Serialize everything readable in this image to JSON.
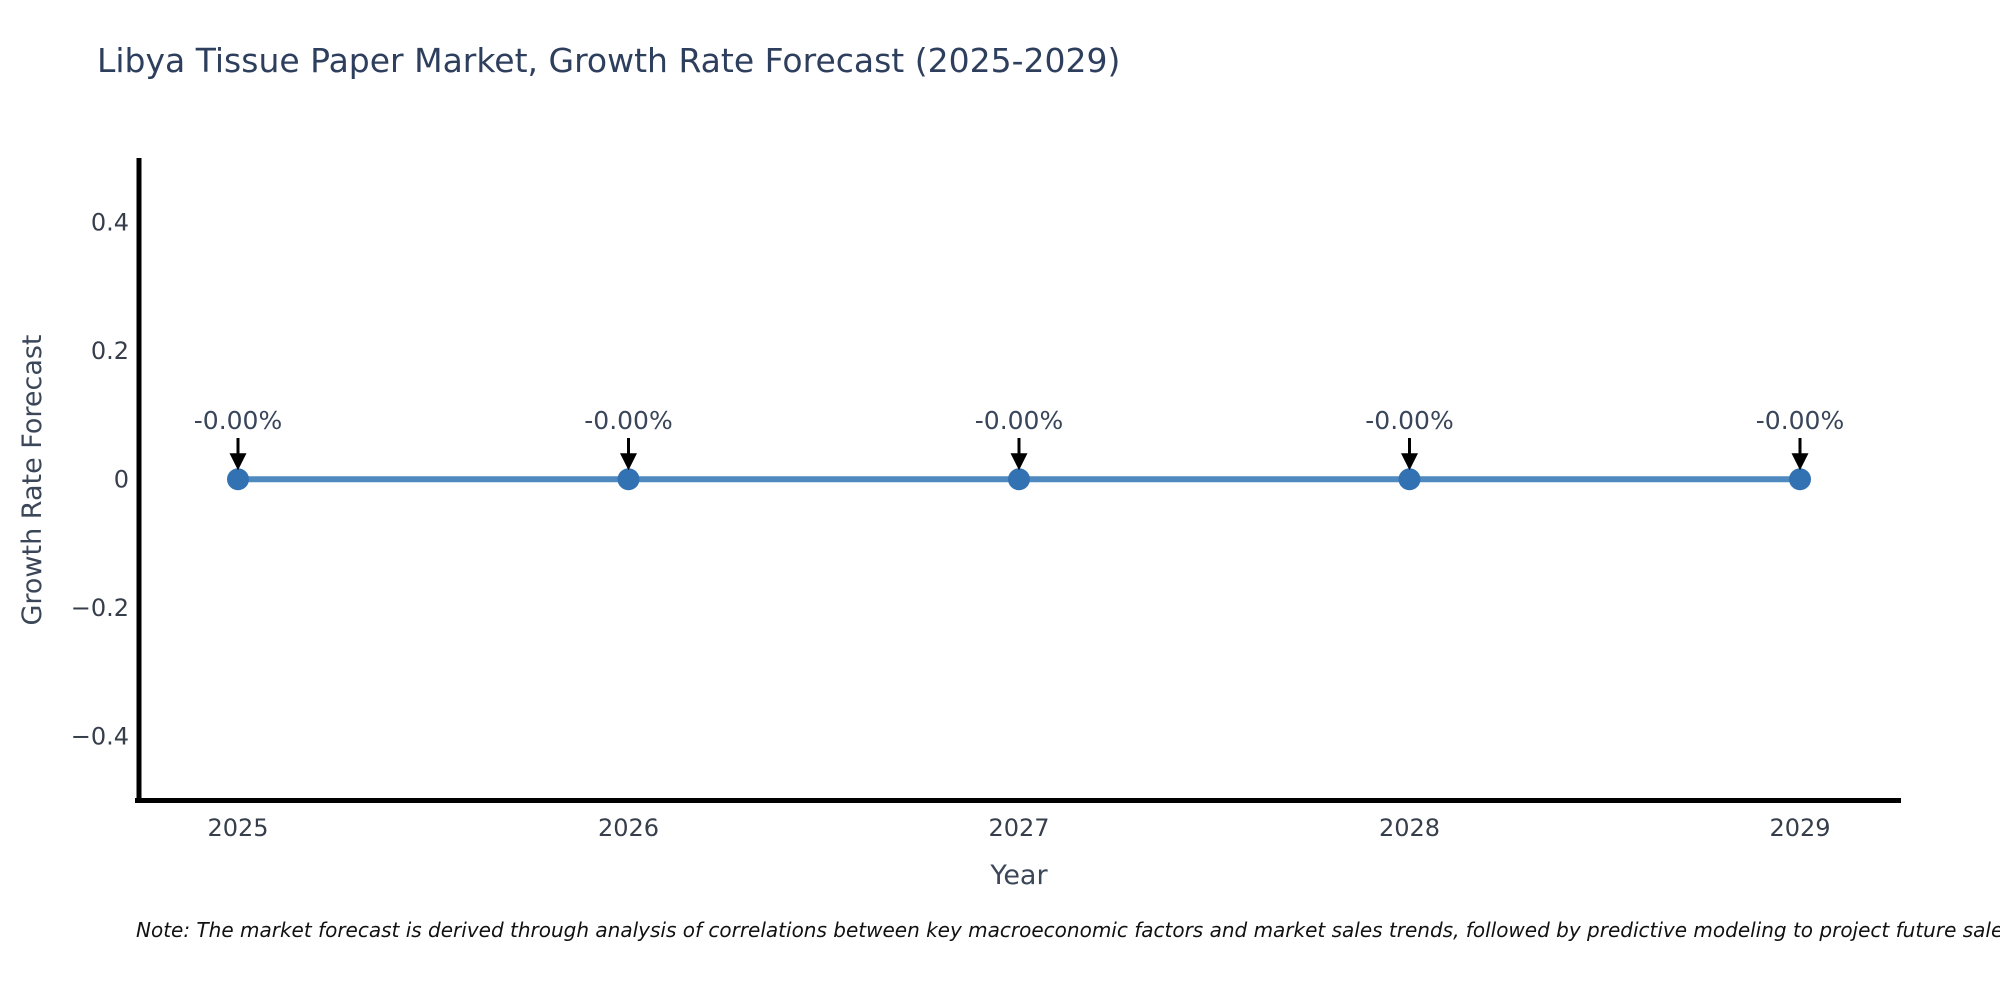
{
  "chart_data": {
    "type": "line",
    "title": "Libya Tissue Paper Market, Growth Rate Forecast (2025-2029)",
    "xlabel": "Year",
    "ylabel": "Growth Rate Forecast",
    "x": [
      2025,
      2026,
      2027,
      2028,
      2029
    ],
    "values": [
      0,
      0,
      0,
      0,
      0
    ],
    "point_labels": [
      "-0.00%",
      "-0.00%",
      "-0.00%",
      "-0.00%",
      "-0.00%"
    ],
    "x_tick_labels": [
      "2025",
      "2026",
      "2027",
      "2028",
      "2029"
    ],
    "y_ticks": [
      0.4,
      0.2,
      0,
      -0.2,
      -0.4
    ],
    "y_tick_labels": [
      "0.4",
      "0.2",
      "0",
      "−0.2",
      "−0.4"
    ],
    "ylim": [
      -0.5,
      0.5
    ],
    "grid": false,
    "legend": "none",
    "note": "Note: The market forecast is derived through analysis of correlations between key macroeconomic factors and market sales trends, followed by predictive modeling to project future sales",
    "colors": {
      "line": "#4e89c0",
      "marker": "#3272b2",
      "arrow": "#000000",
      "axis": "#000000",
      "title": "#2e3f5e",
      "axis_label": "#3b4758",
      "tick_label": "#363e4b",
      "annotation": "#39455a",
      "note_text": "#111111"
    }
  }
}
